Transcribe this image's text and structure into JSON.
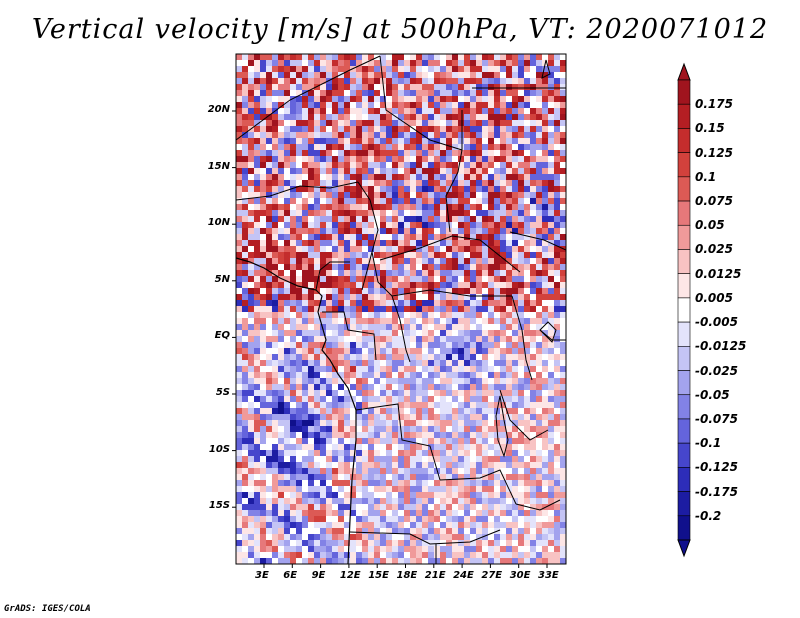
{
  "title": "Vertical velocity [m/s] at 500hPa, VT: 2020071012",
  "credit": "GrADS: IGES/COLA",
  "map": {
    "variable": "Vertical velocity",
    "units": "m/s",
    "level": "500hPa",
    "valid_time": "2020071012",
    "lat_labels": [
      "20N",
      "15N",
      "10N",
      "5N",
      "EQ",
      "5S",
      "10S",
      "15S"
    ],
    "lon_labels": [
      "3E",
      "6E",
      "9E",
      "12E",
      "15E",
      "18E",
      "21E",
      "24E",
      "27E",
      "30E",
      "33E"
    ]
  },
  "colorbar": {
    "labels": [
      "0.175",
      "0.15",
      "0.125",
      "0.1",
      "0.075",
      "0.05",
      "0.025",
      "0.0125",
      "0.005",
      "-0.005",
      "-0.0125",
      "-0.025",
      "-0.05",
      "-0.075",
      "-0.1",
      "-0.125",
      "-0.175",
      "-0.2"
    ],
    "colors": [
      "#a0141e",
      "#b41e23",
      "#c42d2d",
      "#d2413c",
      "#dc5a55",
      "#e6787a",
      "#f09a9a",
      "#f8c3c3",
      "#fde6e6",
      "#ffffff",
      "#e3e3fb",
      "#c4c4f5",
      "#a3a3ee",
      "#8282e6",
      "#6464dc",
      "#4646cc",
      "#2d2db9",
      "#1c1ca2",
      "#10108c"
    ]
  }
}
